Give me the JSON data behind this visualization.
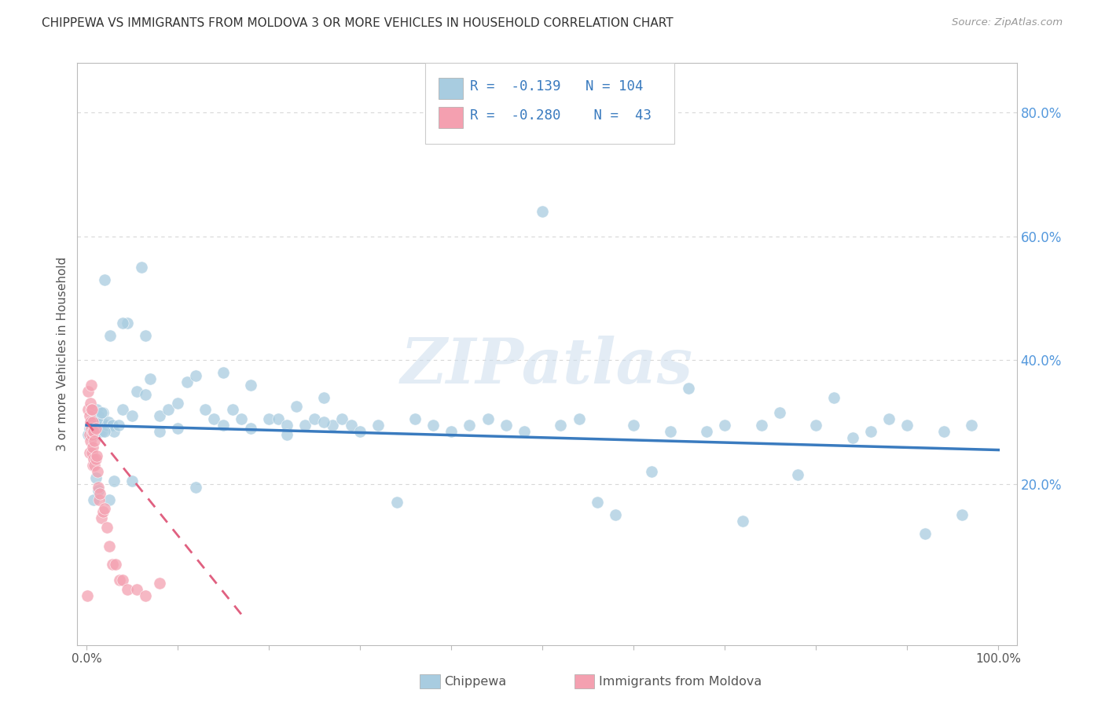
{
  "title": "CHIPPEWA VS IMMIGRANTS FROM MOLDOVA 3 OR MORE VEHICLES IN HOUSEHOLD CORRELATION CHART",
  "source": "Source: ZipAtlas.com",
  "ylabel": "3 or more Vehicles in Household",
  "watermark": "ZIPatlas",
  "legend_chippewa_r": "-0.139",
  "legend_chippewa_n": "104",
  "legend_moldova_r": "-0.280",
  "legend_moldova_n": "43",
  "chippewa_color": "#a8cce0",
  "moldova_color": "#f4a0b0",
  "chippewa_line_color": "#3a7bbf",
  "moldova_line_color": "#e06080",
  "background_color": "#ffffff",
  "grid_color": "#d8d8d8",
  "axis_color": "#bbbbbb",
  "right_tick_color": "#5599dd",
  "chippewa_x": [
    0.002,
    0.003,
    0.004,
    0.005,
    0.006,
    0.007,
    0.008,
    0.009,
    0.01,
    0.011,
    0.012,
    0.013,
    0.015,
    0.016,
    0.017,
    0.018,
    0.02,
    0.022,
    0.024,
    0.026,
    0.028,
    0.03,
    0.035,
    0.04,
    0.045,
    0.05,
    0.055,
    0.06,
    0.065,
    0.07,
    0.08,
    0.09,
    0.1,
    0.11,
    0.12,
    0.13,
    0.14,
    0.15,
    0.16,
    0.17,
    0.18,
    0.2,
    0.21,
    0.22,
    0.23,
    0.24,
    0.25,
    0.26,
    0.27,
    0.28,
    0.29,
    0.3,
    0.32,
    0.34,
    0.36,
    0.38,
    0.4,
    0.42,
    0.44,
    0.46,
    0.48,
    0.5,
    0.52,
    0.54,
    0.56,
    0.58,
    0.6,
    0.62,
    0.64,
    0.66,
    0.68,
    0.7,
    0.72,
    0.74,
    0.76,
    0.78,
    0.8,
    0.82,
    0.84,
    0.86,
    0.88,
    0.9,
    0.92,
    0.94,
    0.96,
    0.97,
    0.005,
    0.008,
    0.01,
    0.013,
    0.016,
    0.02,
    0.025,
    0.03,
    0.04,
    0.05,
    0.065,
    0.08,
    0.1,
    0.12,
    0.15,
    0.18,
    0.22,
    0.26
  ],
  "chippewa_y": [
    0.28,
    0.29,
    0.295,
    0.3,
    0.28,
    0.295,
    0.31,
    0.28,
    0.3,
    0.32,
    0.3,
    0.31,
    0.285,
    0.3,
    0.285,
    0.315,
    0.53,
    0.295,
    0.3,
    0.44,
    0.295,
    0.285,
    0.295,
    0.32,
    0.46,
    0.31,
    0.35,
    0.55,
    0.345,
    0.37,
    0.31,
    0.32,
    0.33,
    0.365,
    0.375,
    0.32,
    0.305,
    0.295,
    0.32,
    0.305,
    0.36,
    0.305,
    0.305,
    0.295,
    0.325,
    0.295,
    0.305,
    0.34,
    0.295,
    0.305,
    0.295,
    0.285,
    0.295,
    0.17,
    0.305,
    0.295,
    0.285,
    0.295,
    0.305,
    0.295,
    0.285,
    0.64,
    0.295,
    0.305,
    0.17,
    0.15,
    0.295,
    0.22,
    0.285,
    0.355,
    0.285,
    0.295,
    0.14,
    0.295,
    0.315,
    0.215,
    0.295,
    0.34,
    0.275,
    0.285,
    0.305,
    0.295,
    0.12,
    0.285,
    0.15,
    0.295,
    0.295,
    0.175,
    0.21,
    0.19,
    0.315,
    0.285,
    0.175,
    0.205,
    0.46,
    0.205,
    0.44,
    0.285,
    0.29,
    0.195,
    0.38,
    0.29,
    0.28,
    0.3
  ],
  "moldova_x": [
    0.001,
    0.002,
    0.002,
    0.003,
    0.003,
    0.003,
    0.004,
    0.004,
    0.004,
    0.005,
    0.005,
    0.005,
    0.006,
    0.006,
    0.006,
    0.007,
    0.007,
    0.007,
    0.007,
    0.008,
    0.008,
    0.009,
    0.009,
    0.01,
    0.01,
    0.011,
    0.012,
    0.013,
    0.014,
    0.015,
    0.016,
    0.018,
    0.02,
    0.022,
    0.025,
    0.028,
    0.032,
    0.036,
    0.04,
    0.045,
    0.055,
    0.065,
    0.08
  ],
  "moldova_y": [
    0.02,
    0.35,
    0.32,
    0.31,
    0.28,
    0.25,
    0.33,
    0.3,
    0.27,
    0.36,
    0.32,
    0.29,
    0.32,
    0.28,
    0.25,
    0.3,
    0.285,
    0.26,
    0.23,
    0.285,
    0.24,
    0.27,
    0.23,
    0.29,
    0.24,
    0.245,
    0.22,
    0.195,
    0.175,
    0.185,
    0.145,
    0.155,
    0.16,
    0.13,
    0.1,
    0.07,
    0.07,
    0.045,
    0.045,
    0.03,
    0.03,
    0.02,
    0.04
  ],
  "chip_line_x0": 0.0,
  "chip_line_x1": 1.0,
  "chip_line_y0": 0.295,
  "chip_line_y1": 0.255,
  "mold_line_x0": 0.0,
  "mold_line_x1": 0.175,
  "mold_line_y0": 0.3,
  "mold_line_y1": -0.02,
  "xlim_min": -0.01,
  "xlim_max": 1.02,
  "ylim_min": -0.06,
  "ylim_max": 0.88,
  "ytick_vals": [
    0.2,
    0.4,
    0.6,
    0.8
  ],
  "ytick_labels": [
    "20.0%",
    "40.0%",
    "60.0%",
    "80.0%"
  ]
}
